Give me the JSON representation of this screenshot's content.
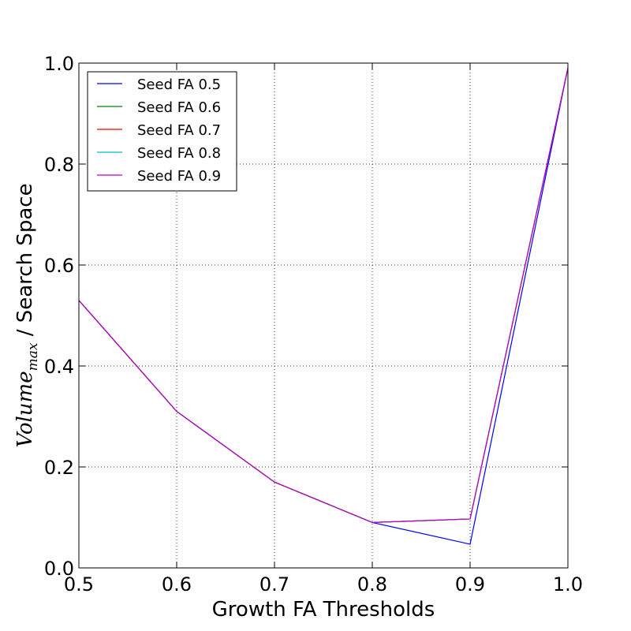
{
  "chart_data": {
    "type": "line",
    "xlabel": "Growth FA Thresholds",
    "ylabel": {
      "main": "Volume",
      "subscript": "max",
      "rest": " / Search Space"
    },
    "xlim": [
      0.5,
      1.0
    ],
    "ylim": [
      0.0,
      1.0
    ],
    "xticks": [
      "0.5",
      "0.6",
      "0.7",
      "0.8",
      "0.9",
      "1.0"
    ],
    "yticks": [
      "0.0",
      "0.2",
      "0.4",
      "0.6",
      "0.8",
      "1.0"
    ],
    "grid": true,
    "legend_position": "top-left",
    "x": [
      0.5,
      0.6,
      0.7,
      0.8,
      0.9,
      1.0
    ],
    "series": [
      {
        "name": "Seed FA 0.5",
        "color": "#0000ff",
        "values": [
          0.53,
          0.31,
          0.17,
          0.09,
          0.047,
          0.99
        ]
      },
      {
        "name": "Seed FA 0.6",
        "color": "#008000",
        "values": [
          0.53,
          0.31,
          0.17,
          0.09,
          0.097,
          0.99
        ]
      },
      {
        "name": "Seed FA 0.7",
        "color": "#ff0000",
        "values": [
          0.53,
          0.31,
          0.17,
          0.09,
          0.097,
          0.99
        ]
      },
      {
        "name": "Seed FA 0.8",
        "color": "#00bfbf",
        "values": [
          0.53,
          0.31,
          0.17,
          0.09,
          0.097,
          0.99
        ]
      },
      {
        "name": "Seed FA 0.9",
        "color": "#bf00bf",
        "values": [
          0.53,
          0.31,
          0.17,
          0.09,
          0.097,
          0.99
        ]
      }
    ]
  }
}
